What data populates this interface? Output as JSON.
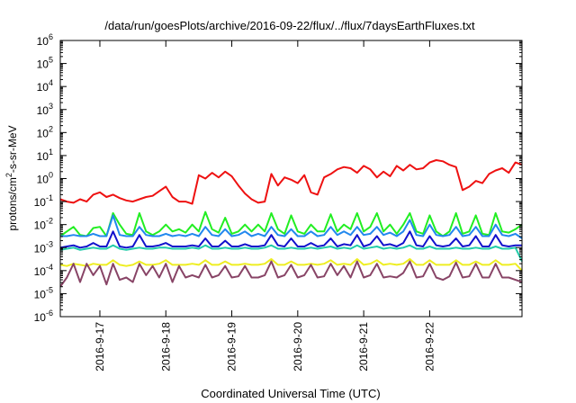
{
  "chart_data": {
    "type": "line",
    "title": "/data/run/goesPlots/archive/2016-09-22/flux/../flux/7daysEarthFluxes.txt",
    "xlabel": "Coordinated Universal Time (UTC)",
    "ylabel": {
      "base": "protons/cm",
      "sup": "2",
      "rest": "-s-sr-MeV"
    },
    "yscale": "log",
    "ylim_exp": [
      -6,
      6
    ],
    "ytick_exponents": [
      6,
      5,
      4,
      3,
      2,
      1,
      0,
      -1,
      -2,
      -3,
      -4,
      -5,
      -6
    ],
    "ytick_base": "10",
    "xlim": [
      0.0,
      7.0
    ],
    "xticks": [
      {
        "x": 0.6,
        "label": "2016-9-17"
      },
      {
        "x": 1.6,
        "label": "2016-9-18"
      },
      {
        "x": 2.6,
        "label": "2016-9-19"
      },
      {
        "x": 3.6,
        "label": "2016-9-20"
      },
      {
        "x": 4.6,
        "label": "2016-9-21"
      },
      {
        "x": 5.6,
        "label": "2016-9-22"
      }
    ],
    "grid": false,
    "series": [
      {
        "color": "#ee1111",
        "x": [
          0.0,
          0.1,
          0.2,
          0.3,
          0.4,
          0.5,
          0.6,
          0.7,
          0.8,
          0.9,
          1.0,
          1.1,
          1.2,
          1.3,
          1.4,
          1.5,
          1.6,
          1.7,
          1.8,
          1.9,
          2.0,
          2.1,
          2.2,
          2.3,
          2.4,
          2.5,
          2.6,
          2.7,
          2.8,
          2.9,
          3.0,
          3.1,
          3.2,
          3.3,
          3.4,
          3.5,
          3.6,
          3.7,
          3.8,
          3.9,
          4.0,
          4.1,
          4.2,
          4.3,
          4.4,
          4.5,
          4.6,
          4.7,
          4.8,
          4.9,
          5.0,
          5.1,
          5.2,
          5.3,
          5.4,
          5.5,
          5.6,
          5.7,
          5.8,
          5.9,
          6.0,
          6.1,
          6.2,
          6.3,
          6.4,
          6.5,
          6.6,
          6.7,
          6.8,
          6.9,
          7.0
        ],
        "y_exp": [
          -0.9,
          -1.0,
          -1.05,
          -0.9,
          -1.0,
          -0.7,
          -0.6,
          -0.8,
          -0.7,
          -0.85,
          -0.95,
          -1.0,
          -0.9,
          -0.8,
          -0.75,
          -0.55,
          -0.35,
          -0.8,
          -1.0,
          -1.0,
          -1.1,
          0.15,
          0.0,
          0.25,
          0.05,
          0.3,
          0.1,
          -0.3,
          -0.65,
          -0.9,
          -1.05,
          -1.0,
          0.2,
          -0.3,
          0.05,
          -0.05,
          -0.2,
          0.15,
          -0.6,
          -0.7,
          0.05,
          0.2,
          0.4,
          0.5,
          0.45,
          0.25,
          0.55,
          0.4,
          0.05,
          0.3,
          0.1,
          0.55,
          0.35,
          0.6,
          0.4,
          0.45,
          0.7,
          0.8,
          0.75,
          0.6,
          0.5,
          -0.5,
          -0.35,
          -0.1,
          -0.2,
          0.2,
          0.35,
          0.45,
          0.25,
          0.7,
          0.6
        ]
      },
      {
        "color": "#22ee22",
        "x": [
          0.0,
          0.1,
          0.2,
          0.3,
          0.4,
          0.5,
          0.6,
          0.7,
          0.8,
          0.9,
          1.0,
          1.1,
          1.2,
          1.3,
          1.4,
          1.5,
          1.6,
          1.7,
          1.8,
          1.9,
          2.0,
          2.1,
          2.2,
          2.3,
          2.4,
          2.5,
          2.6,
          2.7,
          2.8,
          2.9,
          3.0,
          3.1,
          3.2,
          3.3,
          3.4,
          3.5,
          3.6,
          3.7,
          3.8,
          3.9,
          4.0,
          4.1,
          4.2,
          4.3,
          4.4,
          4.5,
          4.6,
          4.7,
          4.8,
          4.9,
          5.0,
          5.1,
          5.2,
          5.3,
          5.4,
          5.5,
          5.6,
          5.7,
          5.8,
          5.9,
          6.0,
          6.1,
          6.2,
          6.3,
          6.4,
          6.5,
          6.6,
          6.7,
          6.8,
          6.9,
          7.0
        ],
        "y_exp": [
          -2.5,
          -2.3,
          -2.1,
          -2.45,
          -2.5,
          -2.15,
          -2.1,
          -2.5,
          -1.5,
          -2.0,
          -2.4,
          -2.45,
          -1.5,
          -2.3,
          -2.45,
          -2.3,
          -2.0,
          -2.3,
          -2.2,
          -2.35,
          -2.0,
          -2.3,
          -1.45,
          -2.2,
          -2.35,
          -1.7,
          -2.4,
          -2.3,
          -2.0,
          -2.3,
          -2.0,
          -2.3,
          -1.5,
          -2.2,
          -2.4,
          -1.6,
          -2.3,
          -2.4,
          -2.0,
          -2.3,
          -2.3,
          -1.55,
          -2.3,
          -2.0,
          -2.2,
          -1.5,
          -2.3,
          -2.1,
          -1.5,
          -2.3,
          -2.0,
          -2.4,
          -2.0,
          -1.5,
          -2.3,
          -2.4,
          -1.6,
          -2.3,
          -2.5,
          -2.3,
          -1.5,
          -2.4,
          -2.3,
          -1.6,
          -2.4,
          -2.45,
          -1.5,
          -2.3,
          -2.35,
          -2.2,
          -2.0
        ]
      },
      {
        "color": "#2288ee",
        "x": [
          0.0,
          0.1,
          0.2,
          0.3,
          0.4,
          0.5,
          0.6,
          0.7,
          0.8,
          0.9,
          1.0,
          1.1,
          1.2,
          1.3,
          1.4,
          1.5,
          1.6,
          1.7,
          1.8,
          1.9,
          2.0,
          2.1,
          2.2,
          2.3,
          2.4,
          2.5,
          2.6,
          2.7,
          2.8,
          2.9,
          3.0,
          3.1,
          3.2,
          3.3,
          3.4,
          3.5,
          3.6,
          3.7,
          3.8,
          3.9,
          4.0,
          4.1,
          4.2,
          4.3,
          4.4,
          4.5,
          4.6,
          4.7,
          4.8,
          4.9,
          5.0,
          5.1,
          5.2,
          5.3,
          5.4,
          5.5,
          5.6,
          5.7,
          5.8,
          5.9,
          6.0,
          6.1,
          6.2,
          6.3,
          6.4,
          6.5,
          6.6,
          6.7,
          6.8,
          6.9,
          7.0
        ],
        "y_exp": [
          -2.5,
          -2.5,
          -2.45,
          -2.5,
          -2.5,
          -2.4,
          -2.5,
          -2.5,
          -1.6,
          -2.45,
          -2.5,
          -2.5,
          -2.1,
          -2.45,
          -2.5,
          -2.5,
          -2.4,
          -2.5,
          -2.45,
          -2.5,
          -2.4,
          -2.5,
          -2.1,
          -2.45,
          -2.5,
          -2.2,
          -2.5,
          -2.45,
          -2.3,
          -2.5,
          -2.4,
          -2.5,
          -2.1,
          -2.45,
          -2.5,
          -2.2,
          -2.5,
          -2.5,
          -2.3,
          -2.5,
          -2.45,
          -2.1,
          -2.45,
          -2.3,
          -2.45,
          -2.1,
          -2.45,
          -2.4,
          -2.1,
          -2.45,
          -2.35,
          -2.5,
          -2.3,
          -1.8,
          -2.45,
          -2.5,
          -2.0,
          -2.45,
          -2.5,
          -2.45,
          -2.1,
          -2.5,
          -2.45,
          -2.1,
          -2.5,
          -2.5,
          -2.0,
          -2.45,
          -2.5,
          -2.4,
          -2.6
        ]
      },
      {
        "color": "#1111cc",
        "x": [
          0.0,
          0.1,
          0.2,
          0.3,
          0.4,
          0.5,
          0.6,
          0.7,
          0.8,
          0.9,
          1.0,
          1.1,
          1.2,
          1.3,
          1.4,
          1.5,
          1.6,
          1.7,
          1.8,
          1.9,
          2.0,
          2.1,
          2.2,
          2.3,
          2.4,
          2.5,
          2.6,
          2.7,
          2.8,
          2.9,
          3.0,
          3.1,
          3.2,
          3.3,
          3.4,
          3.5,
          3.6,
          3.7,
          3.8,
          3.9,
          4.0,
          4.1,
          4.2,
          4.3,
          4.4,
          4.5,
          4.6,
          4.7,
          4.8,
          4.9,
          5.0,
          5.1,
          5.2,
          5.3,
          5.4,
          5.5,
          5.6,
          5.7,
          5.8,
          5.9,
          6.0,
          6.1,
          6.2,
          6.3,
          6.4,
          6.5,
          6.6,
          6.7,
          6.8,
          6.9,
          7.0
        ],
        "y_exp": [
          -3.0,
          -2.95,
          -2.9,
          -3.0,
          -2.95,
          -2.8,
          -2.95,
          -2.95,
          -2.3,
          -2.95,
          -3.0,
          -2.95,
          -2.45,
          -2.95,
          -2.95,
          -2.9,
          -2.8,
          -2.95,
          -2.95,
          -2.95,
          -2.9,
          -2.95,
          -2.6,
          -2.95,
          -2.95,
          -2.7,
          -2.95,
          -2.95,
          -2.85,
          -2.95,
          -2.95,
          -2.9,
          -2.45,
          -2.9,
          -2.95,
          -2.6,
          -2.95,
          -2.95,
          -2.8,
          -2.95,
          -2.9,
          -2.6,
          -2.95,
          -2.85,
          -2.9,
          -2.45,
          -2.95,
          -2.85,
          -2.5,
          -2.9,
          -2.85,
          -2.95,
          -2.8,
          -2.3,
          -2.9,
          -2.95,
          -2.5,
          -2.9,
          -2.95,
          -2.9,
          -2.6,
          -2.95,
          -2.9,
          -2.5,
          -2.95,
          -2.95,
          -2.45,
          -2.9,
          -2.95,
          -2.9,
          -2.9
        ]
      },
      {
        "color": "#22ccaa",
        "x": [
          0.0,
          0.1,
          0.2,
          0.3,
          0.4,
          0.5,
          0.6,
          0.7,
          0.8,
          0.9,
          1.0,
          1.1,
          1.2,
          1.3,
          1.4,
          1.5,
          1.6,
          1.7,
          1.8,
          1.9,
          2.0,
          2.1,
          2.2,
          2.3,
          2.4,
          2.5,
          2.6,
          2.7,
          2.8,
          2.9,
          3.0,
          3.1,
          3.2,
          3.3,
          3.4,
          3.5,
          3.6,
          3.7,
          3.8,
          3.9,
          4.0,
          4.1,
          4.2,
          4.3,
          4.4,
          4.5,
          4.6,
          4.7,
          4.8,
          4.9,
          5.0,
          5.1,
          5.2,
          5.3,
          5.4,
          5.5,
          5.6,
          5.7,
          5.8,
          5.9,
          6.0,
          6.1,
          6.2,
          6.3,
          6.4,
          6.5,
          6.6,
          6.7,
          6.8,
          6.9,
          7.0
        ],
        "y_exp": [
          -3.1,
          -3.05,
          -3.0,
          -3.1,
          -3.05,
          -3.0,
          -3.05,
          -3.05,
          -2.9,
          -3.05,
          -3.1,
          -3.05,
          -3.0,
          -3.05,
          -3.05,
          -3.0,
          -3.0,
          -3.05,
          -3.05,
          -3.05,
          -3.0,
          -3.05,
          -2.9,
          -3.05,
          -3.05,
          -3.0,
          -3.05,
          -3.05,
          -3.0,
          -3.05,
          -3.05,
          -3.0,
          -2.9,
          -3.05,
          -3.05,
          -3.0,
          -3.05,
          -3.05,
          -3.0,
          -3.05,
          -3.0,
          -2.95,
          -3.05,
          -3.0,
          -3.05,
          -2.9,
          -3.05,
          -3.0,
          -2.95,
          -3.05,
          -3.0,
          -3.05,
          -3.0,
          -2.9,
          -3.05,
          -3.05,
          -2.95,
          -3.05,
          -3.05,
          -3.05,
          -3.0,
          -3.05,
          -3.05,
          -3.0,
          -3.05,
          -3.05,
          -2.95,
          -3.05,
          -3.05,
          -3.0,
          -3.6
        ]
      },
      {
        "color": "#eeee22",
        "x": [
          0.0,
          0.1,
          0.2,
          0.3,
          0.4,
          0.5,
          0.6,
          0.7,
          0.8,
          0.9,
          1.0,
          1.1,
          1.2,
          1.3,
          1.4,
          1.5,
          1.6,
          1.7,
          1.8,
          1.9,
          2.0,
          2.1,
          2.2,
          2.3,
          2.4,
          2.5,
          2.6,
          2.7,
          2.8,
          2.9,
          3.0,
          3.1,
          3.2,
          3.3,
          3.4,
          3.5,
          3.6,
          3.7,
          3.8,
          3.9,
          4.0,
          4.1,
          4.2,
          4.3,
          4.4,
          4.5,
          4.6,
          4.7,
          4.8,
          4.9,
          5.0,
          5.1,
          5.2,
          5.3,
          5.4,
          5.5,
          5.6,
          5.7,
          5.8,
          5.9,
          6.0,
          6.1,
          6.2,
          6.3,
          6.4,
          6.5,
          6.6,
          6.7,
          6.8,
          6.9,
          7.0
        ],
        "y_exp": [
          -3.75,
          -3.8,
          -3.7,
          -3.75,
          -3.8,
          -3.7,
          -3.75,
          -3.75,
          -3.55,
          -3.75,
          -3.8,
          -3.75,
          -3.6,
          -3.75,
          -3.75,
          -3.7,
          -3.55,
          -3.75,
          -3.75,
          -3.75,
          -3.7,
          -3.75,
          -3.55,
          -3.75,
          -3.75,
          -3.6,
          -3.75,
          -3.75,
          -3.7,
          -3.75,
          -3.75,
          -3.7,
          -3.5,
          -3.75,
          -3.75,
          -3.6,
          -3.75,
          -3.75,
          -3.7,
          -3.75,
          -3.7,
          -3.55,
          -3.75,
          -3.7,
          -3.75,
          -3.5,
          -3.75,
          -3.7,
          -3.55,
          -3.75,
          -3.7,
          -3.75,
          -3.7,
          -3.5,
          -3.75,
          -3.75,
          -3.55,
          -3.75,
          -3.75,
          -3.75,
          -3.55,
          -3.75,
          -3.75,
          -3.6,
          -3.75,
          -3.75,
          -3.55,
          -3.75,
          -3.75,
          -3.7,
          -4.0
        ]
      },
      {
        "color": "#884466",
        "x": [
          0.0,
          0.1,
          0.2,
          0.3,
          0.4,
          0.5,
          0.6,
          0.7,
          0.8,
          0.9,
          1.0,
          1.1,
          1.2,
          1.3,
          1.4,
          1.5,
          1.6,
          1.7,
          1.8,
          1.9,
          2.0,
          2.1,
          2.2,
          2.3,
          2.4,
          2.5,
          2.6,
          2.7,
          2.8,
          2.9,
          3.0,
          3.1,
          3.2,
          3.3,
          3.4,
          3.5,
          3.6,
          3.7,
          3.8,
          3.9,
          4.0,
          4.1,
          4.2,
          4.3,
          4.4,
          4.5,
          4.6,
          4.7,
          4.8,
          4.9,
          5.0,
          5.1,
          5.2,
          5.3,
          5.4,
          5.5,
          5.6,
          5.7,
          5.8,
          5.9,
          6.0,
          6.1,
          6.2,
          6.3,
          6.4,
          6.5,
          6.6,
          6.7,
          6.8,
          6.9,
          7.0
        ],
        "y_exp": [
          -4.7,
          -4.3,
          -3.7,
          -4.5,
          -3.7,
          -4.2,
          -3.8,
          -4.6,
          -3.7,
          -4.4,
          -4.3,
          -4.5,
          -3.7,
          -4.2,
          -3.8,
          -4.3,
          -3.7,
          -4.5,
          -3.8,
          -4.3,
          -4.2,
          -4.3,
          -3.75,
          -4.3,
          -4.2,
          -3.8,
          -4.3,
          -4.25,
          -3.8,
          -4.3,
          -4.3,
          -4.2,
          -3.6,
          -4.3,
          -4.2,
          -3.75,
          -4.3,
          -4.2,
          -3.75,
          -4.3,
          -4.25,
          -3.7,
          -4.2,
          -3.8,
          -4.3,
          -3.6,
          -4.3,
          -4.2,
          -3.7,
          -4.3,
          -4.25,
          -4.3,
          -4.1,
          -3.6,
          -4.3,
          -4.25,
          -3.7,
          -4.3,
          -4.4,
          -4.25,
          -3.65,
          -4.3,
          -4.25,
          -3.7,
          -4.3,
          -4.3,
          -3.7,
          -4.3,
          -4.3,
          -4.4,
          -4.5
        ]
      }
    ]
  }
}
